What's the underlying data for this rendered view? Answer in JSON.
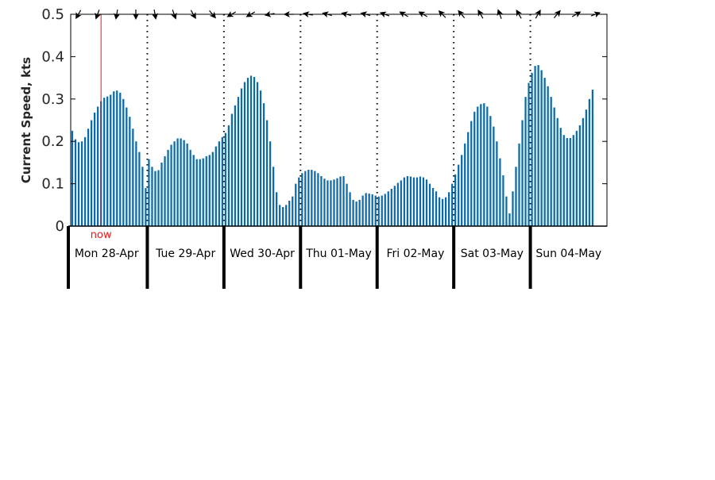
{
  "chart_data": {
    "type": "bar",
    "title": "",
    "xlabel": "",
    "ylabel": "Current Speed, kts",
    "ylim": [
      0,
      0.5
    ],
    "yticks": [
      0,
      0.1,
      0.2,
      0.3,
      0.4,
      0.5
    ],
    "ytick_labels": [
      "0",
      "0.1",
      "0.2",
      "0.3",
      "0.4",
      "0.5"
    ],
    "grid": false,
    "bar_color": "#0b6aa8",
    "hours_per_day": 24,
    "days": [
      "Mon 28-Apr",
      "Tue 29-Apr",
      "Wed 30-Apr",
      "Thu 01-May",
      "Fri 02-May",
      "Sat 03-May",
      "Sun 04-May"
    ],
    "now": {
      "label": "now",
      "hour": 9.5,
      "color": "#e8191a"
    },
    "values": [
      0.225,
      0.205,
      0.198,
      0.2,
      0.21,
      0.23,
      0.25,
      0.268,
      0.282,
      0.295,
      0.303,
      0.306,
      0.31,
      0.318,
      0.32,
      0.315,
      0.3,
      0.28,
      0.258,
      0.23,
      0.2,
      0.175,
      0.14,
      0.09,
      0.158,
      0.14,
      0.13,
      0.132,
      0.15,
      0.165,
      0.18,
      0.192,
      0.2,
      0.207,
      0.207,
      0.203,
      0.195,
      0.18,
      0.168,
      0.158,
      0.158,
      0.16,
      0.165,
      0.168,
      0.175,
      0.188,
      0.2,
      0.21,
      0.22,
      0.238,
      0.265,
      0.285,
      0.305,
      0.325,
      0.34,
      0.35,
      0.355,
      0.352,
      0.34,
      0.32,
      0.29,
      0.25,
      0.2,
      0.14,
      0.08,
      0.05,
      0.045,
      0.05,
      0.06,
      0.07,
      0.1,
      0.115,
      0.125,
      0.13,
      0.133,
      0.133,
      0.13,
      0.125,
      0.118,
      0.112,
      0.108,
      0.108,
      0.11,
      0.113,
      0.117,
      0.118,
      0.1,
      0.08,
      0.062,
      0.058,
      0.062,
      0.072,
      0.078,
      0.077,
      0.075,
      0.072,
      0.07,
      0.072,
      0.076,
      0.082,
      0.088,
      0.095,
      0.102,
      0.108,
      0.115,
      0.118,
      0.117,
      0.115,
      0.115,
      0.117,
      0.115,
      0.11,
      0.1,
      0.09,
      0.082,
      0.068,
      0.064,
      0.068,
      0.08,
      0.1,
      0.122,
      0.145,
      0.168,
      0.195,
      0.222,
      0.248,
      0.27,
      0.282,
      0.288,
      0.29,
      0.282,
      0.26,
      0.235,
      0.2,
      0.16,
      0.12,
      0.07,
      0.03,
      0.082,
      0.14,
      0.195,
      0.25,
      0.305,
      0.338,
      0.362,
      0.378,
      0.38,
      0.368,
      0.35,
      0.33,
      0.305,
      0.28,
      0.255,
      0.232,
      0.215,
      0.208,
      0.208,
      0.215,
      0.225,
      0.238,
      0.255,
      0.275,
      0.3,
      0.322
    ],
    "direction_arrows": {
      "count": 28,
      "color": "#000000",
      "bearings_deg": [
        210,
        200,
        190,
        180,
        170,
        160,
        150,
        140,
        240,
        240,
        260,
        270,
        280,
        285,
        285,
        285,
        290,
        300,
        300,
        315,
        320,
        330,
        340,
        330,
        30,
        40,
        60,
        70
      ]
    }
  }
}
